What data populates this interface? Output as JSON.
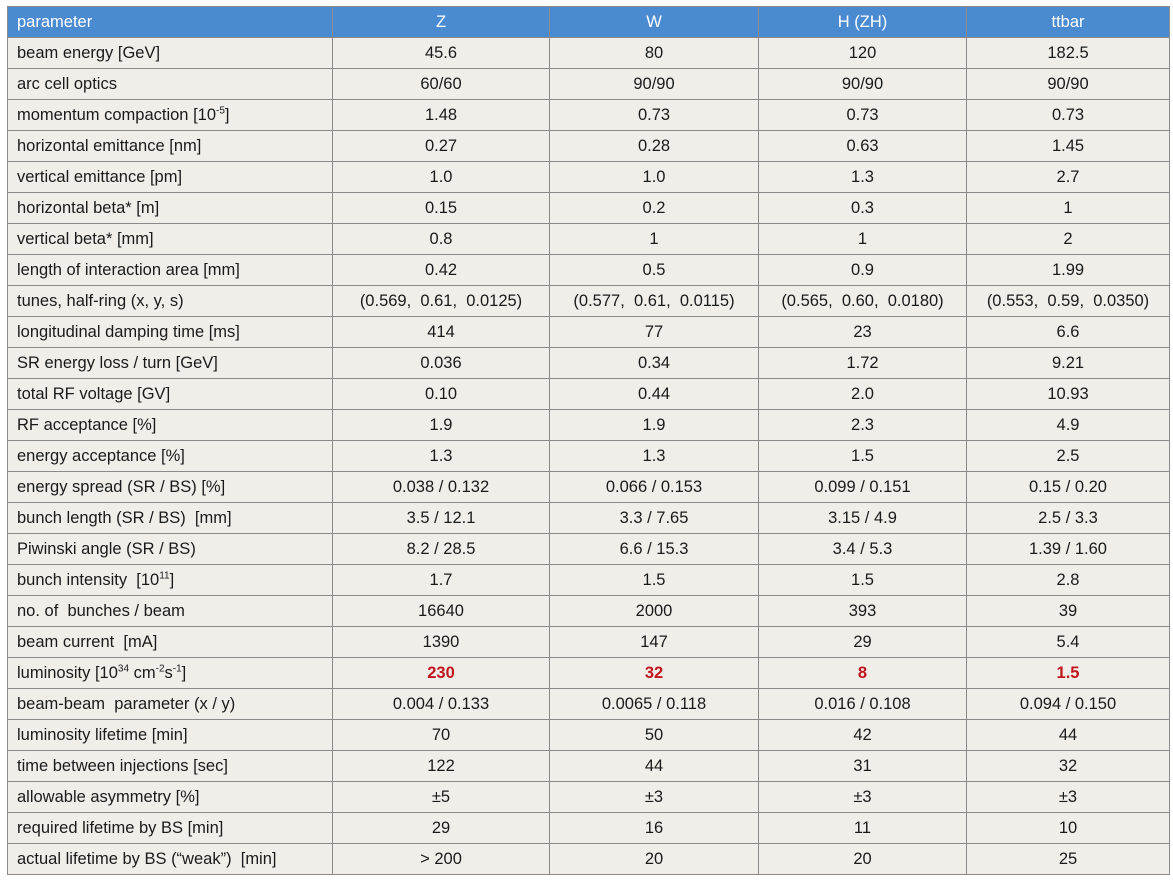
{
  "header": [
    "parameter",
    "Z",
    "W",
    "H (ZH)",
    "ttbar"
  ],
  "rows": [
    {
      "label": [
        "beam energy [GeV]"
      ],
      "values": [
        "45.6",
        "80",
        "120",
        "182.5"
      ]
    },
    {
      "label": [
        "arc cell optics"
      ],
      "values": [
        "60/60",
        "90/90",
        "90/90",
        "90/90"
      ]
    },
    {
      "label": [
        "momentum compaction [10",
        "-5",
        "]"
      ],
      "values": [
        "1.48",
        "0.73",
        "0.73",
        "0.73"
      ]
    },
    {
      "label": [
        "horizontal emittance [nm]"
      ],
      "values": [
        "0.27",
        "0.28",
        "0.63",
        "1.45"
      ]
    },
    {
      "label": [
        "vertical emittance [pm]"
      ],
      "values": [
        "1.0",
        "1.0",
        "1.3",
        "2.7"
      ]
    },
    {
      "label": [
        "horizontal beta* [m]"
      ],
      "values": [
        "0.15",
        "0.2",
        "0.3",
        "1"
      ]
    },
    {
      "label": [
        "vertical beta* [mm]"
      ],
      "values": [
        "0.8",
        "1",
        "1",
        "2"
      ]
    },
    {
      "label": [
        "length of interaction area [mm]"
      ],
      "values": [
        "0.42",
        "0.5",
        "0.9",
        "1.99"
      ]
    },
    {
      "label": [
        "tunes, half-ring (x, y, s)"
      ],
      "values": [
        "(0.569,  0.61,  0.0125)",
        "(0.577,  0.61,  0.0115)",
        "(0.565,  0.60,  0.0180)",
        "(0.553,  0.59,  0.0350)"
      ]
    },
    {
      "label": [
        "longitudinal damping time [ms]"
      ],
      "values": [
        "414",
        "77",
        "23",
        "6.6"
      ]
    },
    {
      "label": [
        "SR energy loss / turn [GeV]"
      ],
      "values": [
        "0.036",
        "0.34",
        "1.72",
        "9.21"
      ]
    },
    {
      "label": [
        "total RF voltage [GV]"
      ],
      "values": [
        "0.10",
        "0.44",
        "2.0",
        "10.93"
      ]
    },
    {
      "label": [
        "RF acceptance [%]"
      ],
      "values": [
        "1.9",
        "1.9",
        "2.3",
        "4.9"
      ]
    },
    {
      "label": [
        "energy acceptance [%]"
      ],
      "values": [
        "1.3",
        "1.3",
        "1.5",
        "2.5"
      ]
    },
    {
      "label": [
        "energy spread (SR / BS) [%]"
      ],
      "values": [
        "0.038 / 0.132",
        "0.066 / 0.153",
        "0.099 / 0.151",
        "0.15 / 0.20"
      ]
    },
    {
      "label": [
        "bunch length (SR / BS)  [mm]"
      ],
      "values": [
        "3.5 / 12.1",
        "3.3 / 7.65",
        "3.15 / 4.9",
        "2.5 / 3.3"
      ]
    },
    {
      "label": [
        "Piwinski angle (SR / BS)"
      ],
      "values": [
        "8.2 / 28.5",
        "6.6 / 15.3",
        "3.4 / 5.3",
        "1.39 / 1.60"
      ]
    },
    {
      "label": [
        "bunch intensity  [10",
        "11",
        "]"
      ],
      "values": [
        "1.7",
        "1.5",
        "1.5",
        "2.8"
      ]
    },
    {
      "label": [
        "no. of  bunches / beam"
      ],
      "values": [
        "16640",
        "2000",
        "393",
        "39"
      ]
    },
    {
      "label": [
        "beam current  [mA]"
      ],
      "values": [
        "1390",
        "147",
        "29",
        "5.4"
      ]
    },
    {
      "label": [
        "luminosity [10",
        "34",
        " cm",
        "-2",
        "s",
        "-1",
        "]"
      ],
      "values": [
        "230",
        "32",
        "8",
        "1.5"
      ],
      "highlight": true
    },
    {
      "label": [
        "beam-beam  parameter (x / y)"
      ],
      "values": [
        "0.004 / 0.133",
        "0.0065 / 0.118",
        "0.016 / 0.108",
        "0.094 / 0.150"
      ]
    },
    {
      "label": [
        "luminosity lifetime [min]"
      ],
      "values": [
        "70",
        "50",
        "42",
        "44"
      ]
    },
    {
      "label": [
        "time between injections [sec]"
      ],
      "values": [
        "122",
        "44",
        "31",
        "32"
      ]
    },
    {
      "label": [
        "allowable asymmetry [%]"
      ],
      "values": [
        "±5",
        "±3",
        "±3",
        "±3"
      ]
    },
    {
      "label": [
        "required lifetime by BS [min]"
      ],
      "values": [
        "29",
        "16",
        "11",
        "10"
      ]
    },
    {
      "label": [
        "actual lifetime by BS (“weak”)  [min]"
      ],
      "values": [
        "> 200",
        "20",
        "20",
        "25"
      ]
    }
  ],
  "colors": {
    "header_bg": "#4a8ad0",
    "header_text": "#ffffff",
    "cell_bg": "#f1eeea",
    "highlight_text": "#c0161d",
    "border": "#8a8a8a"
  }
}
